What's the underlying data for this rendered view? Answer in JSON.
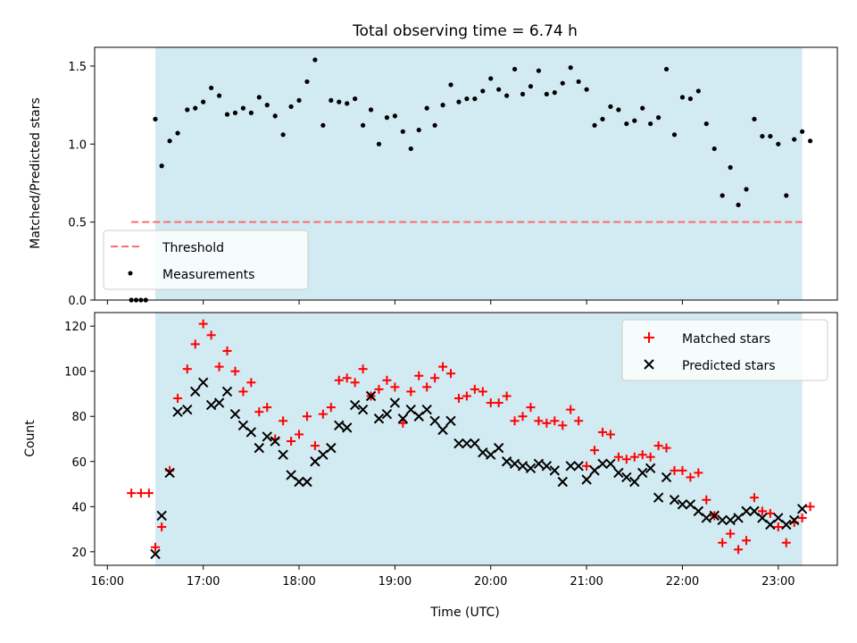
{
  "title": "Total observing time = 6.74 h",
  "colors": {
    "observing_window": "#add8e6",
    "threshold": "#ff6b6b",
    "measurements": "#000000",
    "matched": "#ff0000",
    "predicted": "#000000"
  },
  "chart_data": [
    {
      "type": "scatter",
      "ylabel": "Matched/Predicted stars",
      "xlim": [
        "15:52",
        "23:37"
      ],
      "ylim": [
        0,
        1.62
      ],
      "x_ticks": [
        "16:00",
        "17:00",
        "18:00",
        "19:00",
        "20:00",
        "21:00",
        "22:00",
        "23:00"
      ],
      "y_ticks": [
        "0.0",
        "0.5",
        "1.0",
        "1.5"
      ],
      "observing_window": [
        "16:30",
        "23:15"
      ],
      "threshold": {
        "label": "Threshold",
        "value": 0.5,
        "x_start": "16:15",
        "x_end": "23:15",
        "style": "dashed"
      },
      "legend": {
        "position": "lower left",
        "entries": [
          "Threshold",
          "Measurements"
        ]
      },
      "series": [
        {
          "name": "Measurements",
          "marker": "dot",
          "points": [
            [
              "16:15",
              0
            ],
            [
              "16:18",
              0
            ],
            [
              "16:21",
              0
            ],
            [
              "16:24",
              0
            ],
            [
              "16:30",
              1.16
            ],
            [
              "16:34",
              0.86
            ],
            [
              "16:39",
              1.02
            ],
            [
              "16:44",
              1.07
            ],
            [
              "16:50",
              1.22
            ],
            [
              "16:55",
              1.23
            ],
            [
              "17:00",
              1.27
            ],
            [
              "17:05",
              1.36
            ],
            [
              "17:10",
              1.31
            ],
            [
              "17:15",
              1.19
            ],
            [
              "17:20",
              1.2
            ],
            [
              "17:25",
              1.23
            ],
            [
              "17:30",
              1.2
            ],
            [
              "17:35",
              1.3
            ],
            [
              "17:40",
              1.25
            ],
            [
              "17:45",
              1.18
            ],
            [
              "17:50",
              1.06
            ],
            [
              "17:55",
              1.24
            ],
            [
              "18:00",
              1.28
            ],
            [
              "18:05",
              1.4
            ],
            [
              "18:10",
              1.54
            ],
            [
              "18:15",
              1.12
            ],
            [
              "18:20",
              1.28
            ],
            [
              "18:25",
              1.27
            ],
            [
              "18:30",
              1.26
            ],
            [
              "18:35",
              1.29
            ],
            [
              "18:40",
              1.12
            ],
            [
              "18:45",
              1.22
            ],
            [
              "18:50",
              1.0
            ],
            [
              "18:55",
              1.17
            ],
            [
              "19:00",
              1.18
            ],
            [
              "19:05",
              1.08
            ],
            [
              "19:10",
              0.97
            ],
            [
              "19:15",
              1.09
            ],
            [
              "19:20",
              1.23
            ],
            [
              "19:25",
              1.12
            ],
            [
              "19:30",
              1.25
            ],
            [
              "19:35",
              1.38
            ],
            [
              "19:40",
              1.27
            ],
            [
              "19:45",
              1.29
            ],
            [
              "19:50",
              1.29
            ],
            [
              "19:55",
              1.34
            ],
            [
              "20:00",
              1.42
            ],
            [
              "20:05",
              1.35
            ],
            [
              "20:10",
              1.31
            ],
            [
              "20:15",
              1.48
            ],
            [
              "20:20",
              1.32
            ],
            [
              "20:25",
              1.37
            ],
            [
              "20:30",
              1.47
            ],
            [
              "20:35",
              1.32
            ],
            [
              "20:40",
              1.33
            ],
            [
              "20:45",
              1.39
            ],
            [
              "20:50",
              1.49
            ],
            [
              "20:55",
              1.4
            ],
            [
              "21:00",
              1.35
            ],
            [
              "21:05",
              1.12
            ],
            [
              "21:10",
              1.16
            ],
            [
              "21:15",
              1.24
            ],
            [
              "21:20",
              1.22
            ],
            [
              "21:25",
              1.13
            ],
            [
              "21:30",
              1.15
            ],
            [
              "21:35",
              1.23
            ],
            [
              "21:40",
              1.13
            ],
            [
              "21:45",
              1.17
            ],
            [
              "21:50",
              1.48
            ],
            [
              "21:55",
              1.06
            ],
            [
              "22:00",
              1.3
            ],
            [
              "22:05",
              1.29
            ],
            [
              "22:10",
              1.34
            ],
            [
              "22:15",
              1.13
            ],
            [
              "22:20",
              0.97
            ],
            [
              "22:25",
              0.67
            ],
            [
              "22:30",
              0.85
            ],
            [
              "22:35",
              0.61
            ],
            [
              "22:40",
              0.71
            ],
            [
              "22:45",
              1.16
            ],
            [
              "22:50",
              1.05
            ],
            [
              "22:55",
              1.05
            ],
            [
              "23:00",
              1.0
            ],
            [
              "23:05",
              0.67
            ],
            [
              "23:10",
              1.03
            ],
            [
              "23:15",
              1.08
            ],
            [
              "23:20",
              1.02
            ]
          ]
        }
      ]
    },
    {
      "type": "scatter",
      "xlabel": "Time (UTC)",
      "ylabel": "Count",
      "xlim": [
        "15:52",
        "23:37"
      ],
      "ylim": [
        14,
        126
      ],
      "x_ticks": [
        "16:00",
        "17:00",
        "18:00",
        "19:00",
        "20:00",
        "21:00",
        "22:00",
        "23:00"
      ],
      "y_ticks": [
        "20",
        "40",
        "60",
        "80",
        "100",
        "120"
      ],
      "observing_window": [
        "16:30",
        "23:15"
      ],
      "legend": {
        "position": "upper right",
        "entries": [
          "Matched stars",
          "Predicted stars"
        ]
      },
      "series": [
        {
          "name": "Matched stars",
          "marker": "plus",
          "points": [
            [
              "16:15",
              46
            ],
            [
              "16:21",
              46
            ],
            [
              "16:26",
              46
            ],
            [
              "16:30",
              22
            ],
            [
              "16:34",
              31
            ],
            [
              "16:39",
              56
            ],
            [
              "16:44",
              88
            ],
            [
              "16:50",
              101
            ],
            [
              "16:55",
              112
            ],
            [
              "17:00",
              121
            ],
            [
              "17:05",
              116
            ],
            [
              "17:10",
              102
            ],
            [
              "17:15",
              109
            ],
            [
              "17:20",
              100
            ],
            [
              "17:25",
              91
            ],
            [
              "17:30",
              95
            ],
            [
              "17:35",
              82
            ],
            [
              "17:40",
              84
            ],
            [
              "17:45",
              70
            ],
            [
              "17:50",
              78
            ],
            [
              "17:55",
              69
            ],
            [
              "18:00",
              72
            ],
            [
              "18:05",
              80
            ],
            [
              "18:10",
              67
            ],
            [
              "18:15",
              81
            ],
            [
              "18:20",
              84
            ],
            [
              "18:25",
              96
            ],
            [
              "18:30",
              97
            ],
            [
              "18:35",
              95
            ],
            [
              "18:40",
              101
            ],
            [
              "18:45",
              89
            ],
            [
              "18:50",
              92
            ],
            [
              "18:55",
              96
            ],
            [
              "19:00",
              93
            ],
            [
              "19:05",
              77
            ],
            [
              "19:10",
              91
            ],
            [
              "19:15",
              98
            ],
            [
              "19:20",
              93
            ],
            [
              "19:25",
              97
            ],
            [
              "19:30",
              102
            ],
            [
              "19:35",
              99
            ],
            [
              "19:40",
              88
            ],
            [
              "19:45",
              89
            ],
            [
              "19:50",
              92
            ],
            [
              "19:55",
              91
            ],
            [
              "20:00",
              86
            ],
            [
              "20:05",
              86
            ],
            [
              "20:10",
              89
            ],
            [
              "20:15",
              78
            ],
            [
              "20:20",
              80
            ],
            [
              "20:25",
              84
            ],
            [
              "20:30",
              78
            ],
            [
              "20:35",
              77
            ],
            [
              "20:40",
              78
            ],
            [
              "20:45",
              76
            ],
            [
              "20:50",
              83
            ],
            [
              "20:55",
              78
            ],
            [
              "21:00",
              58
            ],
            [
              "21:05",
              65
            ],
            [
              "21:10",
              73
            ],
            [
              "21:15",
              72
            ],
            [
              "21:20",
              62
            ],
            [
              "21:25",
              61
            ],
            [
              "21:30",
              62
            ],
            [
              "21:35",
              63
            ],
            [
              "21:40",
              62
            ],
            [
              "21:45",
              67
            ],
            [
              "21:50",
              66
            ],
            [
              "21:55",
              56
            ],
            [
              "22:00",
              56
            ],
            [
              "22:05",
              53
            ],
            [
              "22:10",
              55
            ],
            [
              "22:15",
              43
            ],
            [
              "22:20",
              36
            ],
            [
              "22:25",
              24
            ],
            [
              "22:30",
              28
            ],
            [
              "22:35",
              21
            ],
            [
              "22:40",
              25
            ],
            [
              "22:45",
              44
            ],
            [
              "22:50",
              38
            ],
            [
              "22:55",
              37
            ],
            [
              "23:00",
              31
            ],
            [
              "23:05",
              24
            ],
            [
              "23:10",
              33
            ],
            [
              "23:15",
              35
            ],
            [
              "23:20",
              40
            ]
          ]
        },
        {
          "name": "Predicted stars",
          "marker": "x",
          "points": [
            [
              "16:30",
              19
            ],
            [
              "16:34",
              36
            ],
            [
              "16:39",
              55
            ],
            [
              "16:44",
              82
            ],
            [
              "16:50",
              83
            ],
            [
              "16:55",
              91
            ],
            [
              "17:00",
              95
            ],
            [
              "17:05",
              85
            ],
            [
              "17:10",
              86
            ],
            [
              "17:15",
              91
            ],
            [
              "17:20",
              81
            ],
            [
              "17:25",
              76
            ],
            [
              "17:30",
              73
            ],
            [
              "17:35",
              66
            ],
            [
              "17:40",
              71
            ],
            [
              "17:45",
              69
            ],
            [
              "17:50",
              63
            ],
            [
              "17:55",
              54
            ],
            [
              "18:00",
              51
            ],
            [
              "18:05",
              51
            ],
            [
              "18:10",
              60
            ],
            [
              "18:15",
              63
            ],
            [
              "18:20",
              66
            ],
            [
              "18:25",
              76
            ],
            [
              "18:30",
              75
            ],
            [
              "18:35",
              85
            ],
            [
              "18:40",
              83
            ],
            [
              "18:45",
              89
            ],
            [
              "18:50",
              79
            ],
            [
              "18:55",
              81
            ],
            [
              "19:00",
              86
            ],
            [
              "19:05",
              79
            ],
            [
              "19:10",
              83
            ],
            [
              "19:15",
              80
            ],
            [
              "19:20",
              83
            ],
            [
              "19:25",
              78
            ],
            [
              "19:30",
              74
            ],
            [
              "19:35",
              78
            ],
            [
              "19:40",
              68
            ],
            [
              "19:45",
              68
            ],
            [
              "19:50",
              68
            ],
            [
              "19:55",
              64
            ],
            [
              "20:00",
              63
            ],
            [
              "20:05",
              66
            ],
            [
              "20:10",
              60
            ],
            [
              "20:15",
              59
            ],
            [
              "20:20",
              58
            ],
            [
              "20:25",
              57
            ],
            [
              "20:30",
              59
            ],
            [
              "20:35",
              58
            ],
            [
              "20:40",
              56
            ],
            [
              "20:45",
              51
            ],
            [
              "20:50",
              58
            ],
            [
              "20:55",
              58
            ],
            [
              "21:00",
              52
            ],
            [
              "21:05",
              56
            ],
            [
              "21:10",
              59
            ],
            [
              "21:15",
              59
            ],
            [
              "21:20",
              55
            ],
            [
              "21:25",
              53
            ],
            [
              "21:30",
              51
            ],
            [
              "21:35",
              55
            ],
            [
              "21:40",
              57
            ],
            [
              "21:45",
              44
            ],
            [
              "21:50",
              53
            ],
            [
              "21:55",
              43
            ],
            [
              "22:00",
              41
            ],
            [
              "22:05",
              41
            ],
            [
              "22:10",
              38
            ],
            [
              "22:15",
              35
            ],
            [
              "22:20",
              36
            ],
            [
              "22:25",
              34
            ],
            [
              "22:30",
              34
            ],
            [
              "22:35",
              35
            ],
            [
              "22:40",
              38
            ],
            [
              "22:45",
              38
            ],
            [
              "22:50",
              35
            ],
            [
              "22:55",
              32
            ],
            [
              "23:00",
              35
            ],
            [
              "23:05",
              32
            ],
            [
              "23:10",
              34
            ],
            [
              "23:15",
              39
            ]
          ]
        }
      ]
    }
  ]
}
